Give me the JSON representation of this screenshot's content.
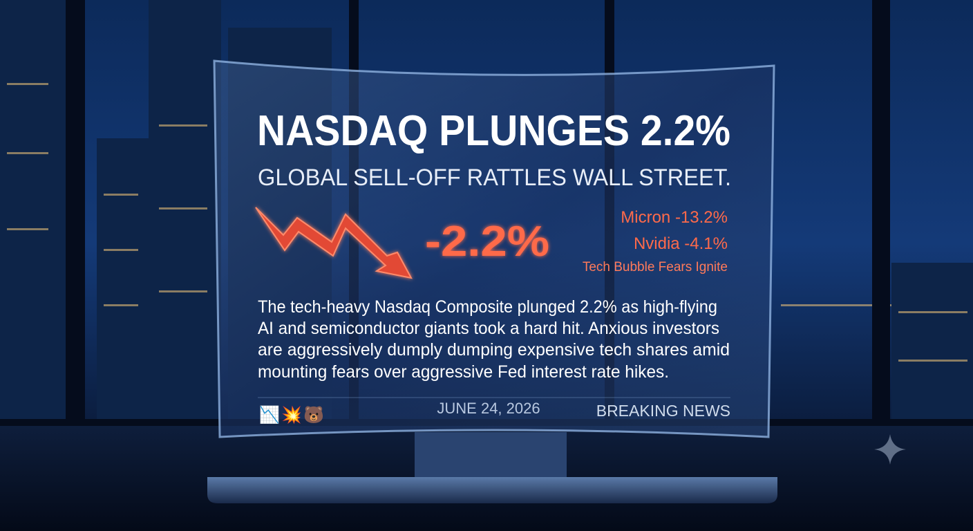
{
  "headline": "NASDAQ PLUNGES 2.2%",
  "subtitle": "GLOBAL SELL-OFF RATTLES WALL STREET.",
  "change": "-2.2%",
  "movers": [
    "Micron -13.2%",
    "Nvidia -4.1%"
  ],
  "tagline": "Tech Bubble Fears Ignite",
  "body": [
    "The tech-heavy Nasdaq Composite plunged 2.2% as high-flying",
    "AI and semiconductor giants took a hard hit. Anxious investors",
    "are aggressively dumply dumping expensive tech shares amid",
    "mounting fears over aggressive Fed interest rate hikes."
  ],
  "footer": {
    "icons": [
      "📉",
      "💥",
      "🐻"
    ],
    "date": "JUNE 24, 2026",
    "label": "BREAKING NEWS"
  }
}
